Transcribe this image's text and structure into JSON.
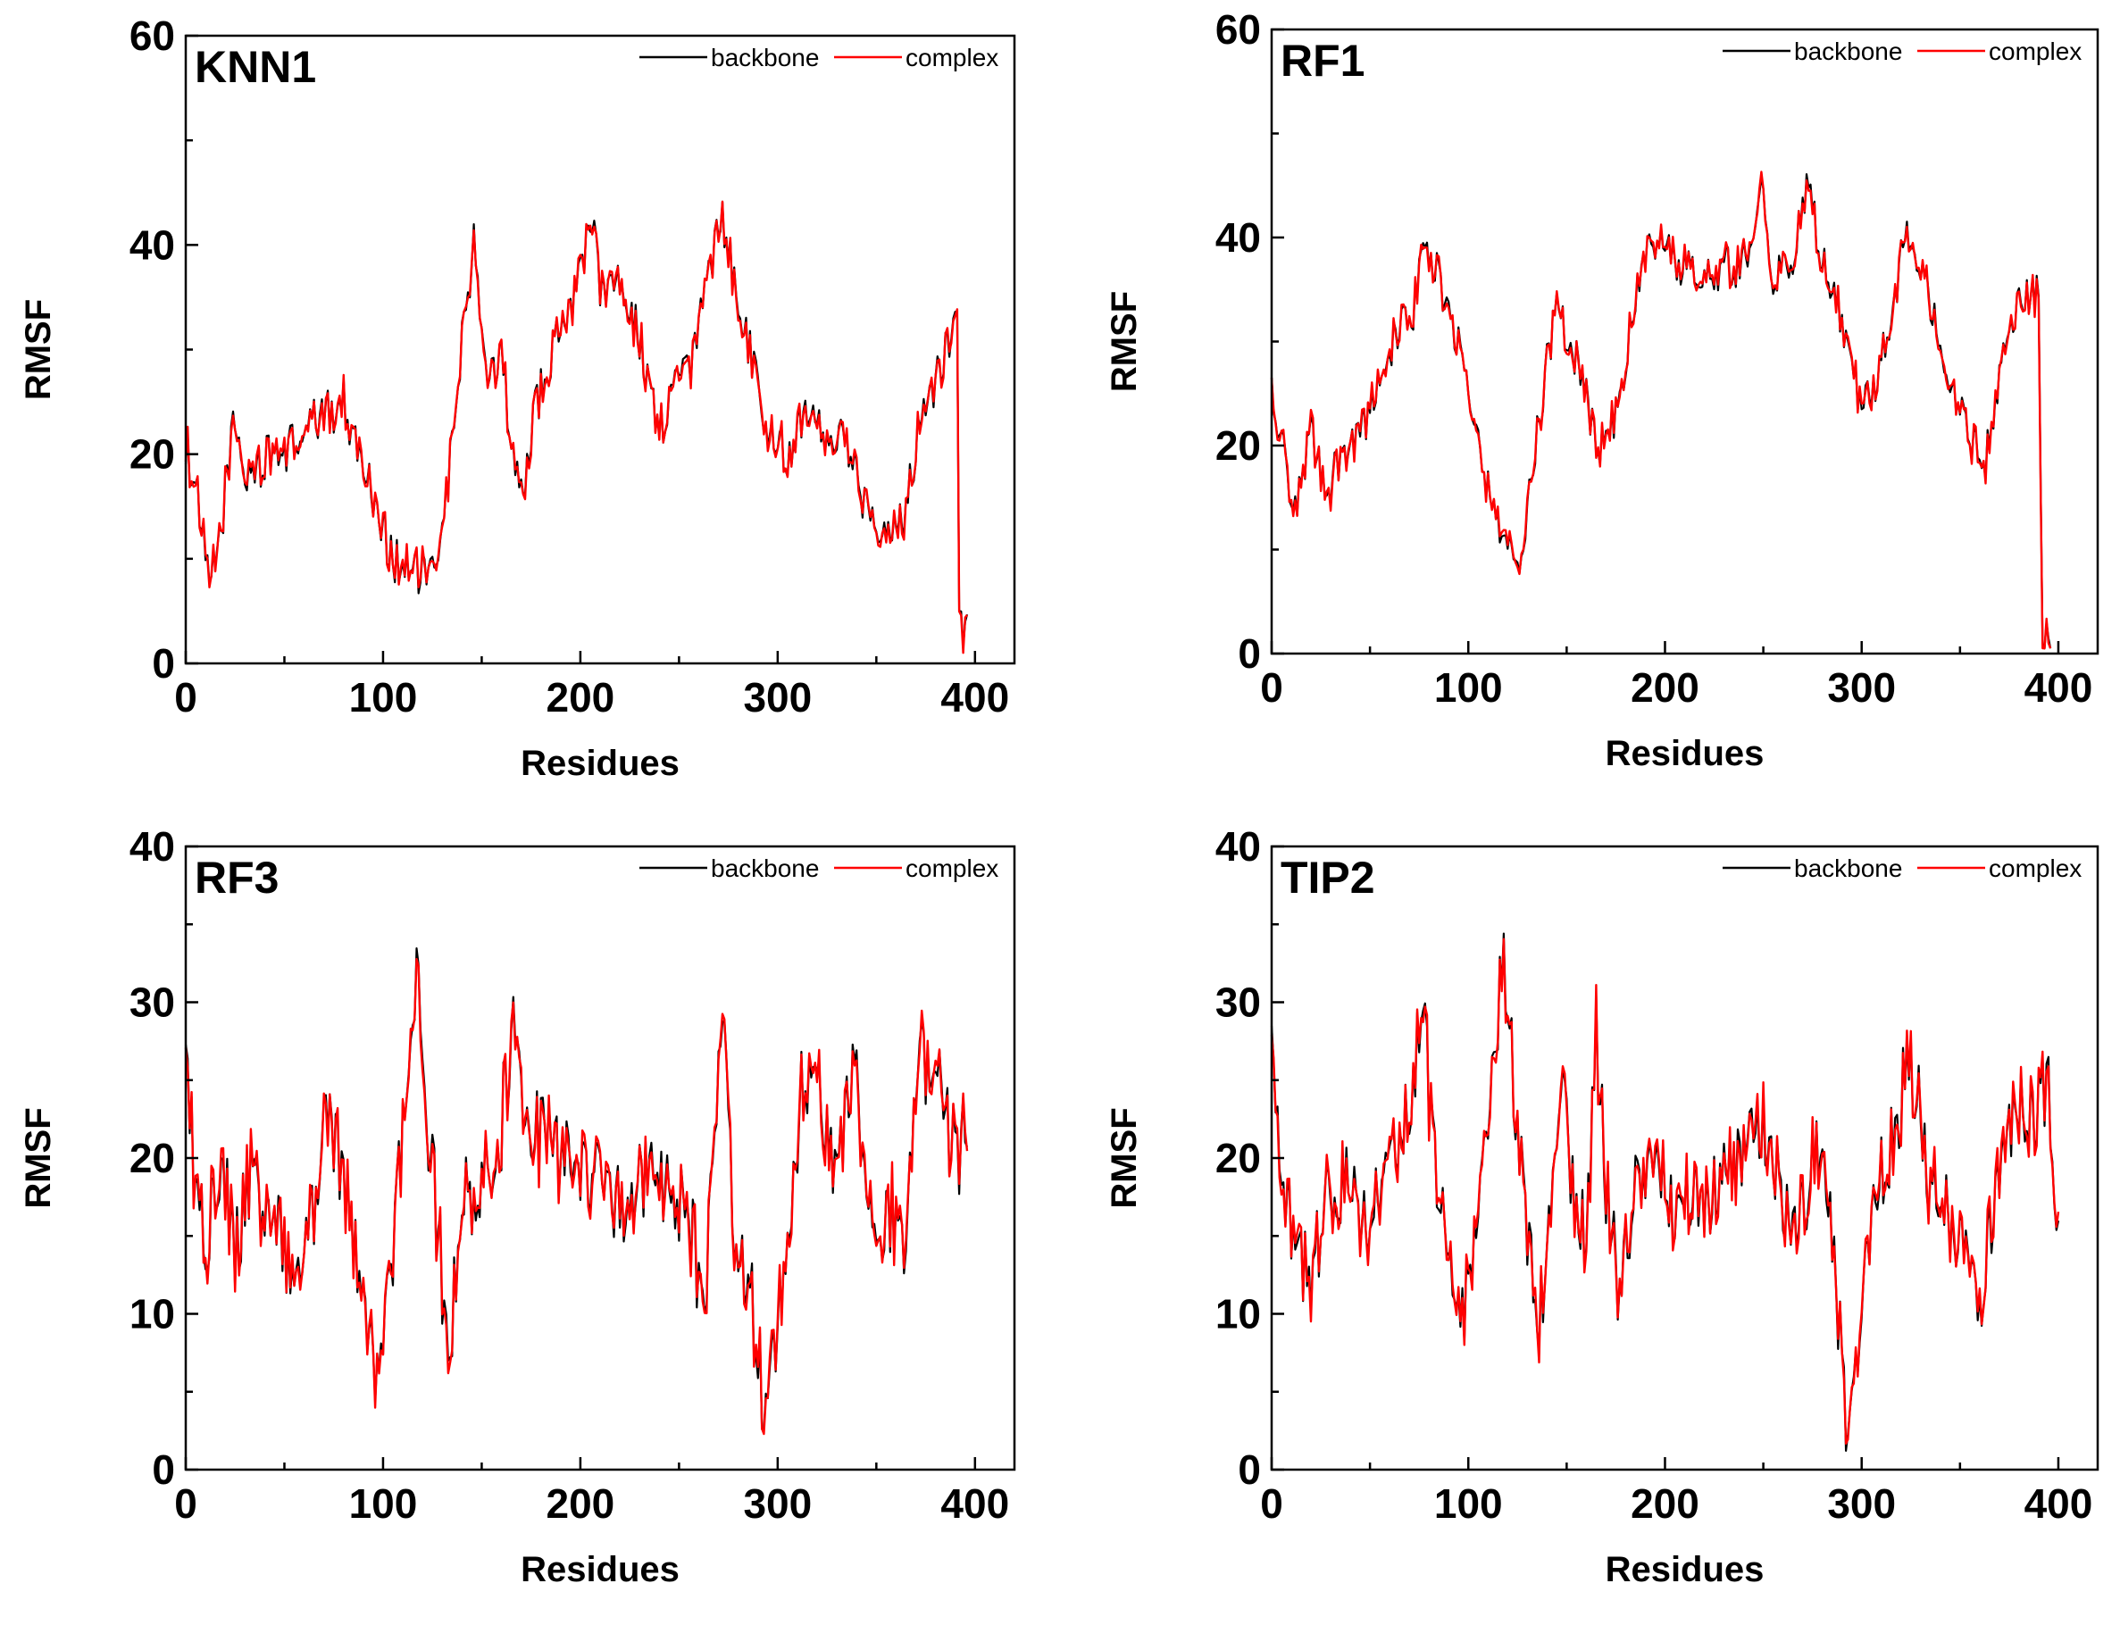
{
  "figure": {
    "description_free": true
  },
  "legend": {
    "series": [
      {
        "name": "backbone",
        "color": "#000000"
      },
      {
        "name": "complex",
        "color": "#ff0000"
      }
    ]
  },
  "chart_data": [
    {
      "type": "line",
      "panel_label": "KNN1",
      "xlabel": "Residues",
      "ylabel": "RMSF",
      "xlim": [
        0,
        420
      ],
      "ylim": [
        0,
        60
      ],
      "xticks": [
        0,
        100,
        200,
        300,
        400
      ],
      "yticks": [
        0,
        20,
        40,
        60
      ],
      "n": 396,
      "noise": 2.3,
      "series_gap": 0.6,
      "keypoints": [
        [
          0,
          21
        ],
        [
          5,
          17
        ],
        [
          12,
          7
        ],
        [
          18,
          13
        ],
        [
          24,
          23
        ],
        [
          30,
          18
        ],
        [
          45,
          20
        ],
        [
          55,
          21
        ],
        [
          65,
          23
        ],
        [
          80,
          25
        ],
        [
          95,
          16
        ],
        [
          105,
          10
        ],
        [
          115,
          9
        ],
        [
          125,
          8
        ],
        [
          133,
          17
        ],
        [
          140,
          31
        ],
        [
          146,
          40
        ],
        [
          150,
          30
        ],
        [
          155,
          27
        ],
        [
          160,
          31
        ],
        [
          165,
          20
        ],
        [
          170,
          16
        ],
        [
          178,
          25
        ],
        [
          190,
          32
        ],
        [
          200,
          37
        ],
        [
          205,
          43
        ],
        [
          210,
          36
        ],
        [
          220,
          37
        ],
        [
          230,
          31
        ],
        [
          240,
          22
        ],
        [
          248,
          27
        ],
        [
          255,
          28
        ],
        [
          262,
          34
        ],
        [
          272,
          43
        ],
        [
          280,
          35
        ],
        [
          290,
          27
        ],
        [
          295,
          22
        ],
        [
          305,
          20
        ],
        [
          315,
          25
        ],
        [
          325,
          22
        ],
        [
          335,
          21
        ],
        [
          345,
          15
        ],
        [
          355,
          13
        ],
        [
          365,
          14
        ],
        [
          372,
          24
        ],
        [
          380,
          27
        ],
        [
          388,
          32
        ],
        [
          391,
          35
        ],
        [
          392,
          3
        ],
        [
          396,
          4
        ]
      ],
      "series": [
        {
          "name": "backbone",
          "color": "#000000"
        },
        {
          "name": "complex",
          "color": "#ff0000"
        }
      ]
    },
    {
      "type": "line",
      "panel_label": "RF1",
      "xlabel": "Residues",
      "ylabel": "RMSF",
      "xlim": [
        0,
        420
      ],
      "ylim": [
        0,
        60
      ],
      "xticks": [
        0,
        100,
        200,
        300,
        400
      ],
      "yticks": [
        0,
        20,
        40,
        60
      ],
      "n": 396,
      "noise": 2.1,
      "series_gap": 0.6,
      "keypoints": [
        [
          0,
          26
        ],
        [
          5,
          20
        ],
        [
          12,
          14
        ],
        [
          20,
          21
        ],
        [
          28,
          15
        ],
        [
          35,
          19
        ],
        [
          45,
          21
        ],
        [
          55,
          26
        ],
        [
          65,
          32
        ],
        [
          72,
          33
        ],
        [
          78,
          40
        ],
        [
          85,
          36
        ],
        [
          95,
          30
        ],
        [
          103,
          23
        ],
        [
          108,
          17
        ],
        [
          115,
          13
        ],
        [
          122,
          9
        ],
        [
          127,
          10
        ],
        [
          132,
          17
        ],
        [
          140,
          28
        ],
        [
          145,
          34
        ],
        [
          150,
          30
        ],
        [
          158,
          27
        ],
        [
          165,
          20
        ],
        [
          172,
          21
        ],
        [
          180,
          28
        ],
        [
          190,
          39
        ],
        [
          200,
          40
        ],
        [
          205,
          37
        ],
        [
          215,
          37
        ],
        [
          225,
          37
        ],
        [
          235,
          37
        ],
        [
          245,
          40
        ],
        [
          250,
          45
        ],
        [
          255,
          36
        ],
        [
          265,
          38
        ],
        [
          272,
          45
        ],
        [
          280,
          38
        ],
        [
          290,
          32
        ],
        [
          298,
          25
        ],
        [
          305,
          24
        ],
        [
          315,
          32
        ],
        [
          322,
          40
        ],
        [
          330,
          37
        ],
        [
          340,
          30
        ],
        [
          348,
          24
        ],
        [
          355,
          21
        ],
        [
          362,
          17
        ],
        [
          370,
          27
        ],
        [
          378,
          33
        ],
        [
          390,
          35
        ],
        [
          392,
          2
        ],
        [
          398,
          2
        ]
      ],
      "series": [
        {
          "name": "backbone",
          "color": "#000000"
        },
        {
          "name": "complex",
          "color": "#ff0000"
        }
      ]
    },
    {
      "type": "line",
      "panel_label": "RF3",
      "xlabel": "Residues",
      "ylabel": "RMSF",
      "xlim": [
        0,
        420
      ],
      "ylim": [
        0,
        40
      ],
      "xticks": [
        0,
        100,
        200,
        300,
        400
      ],
      "yticks": [
        0,
        10,
        20,
        30,
        40
      ],
      "n": 396,
      "noise": 3.0,
      "series_gap": 0.8,
      "keypoints": [
        [
          0,
          26
        ],
        [
          6,
          17
        ],
        [
          12,
          15
        ],
        [
          18,
          20
        ],
        [
          25,
          13
        ],
        [
          32,
          19
        ],
        [
          40,
          16
        ],
        [
          50,
          14
        ],
        [
          58,
          12
        ],
        [
          65,
          17
        ],
        [
          72,
          24
        ],
        [
          78,
          20
        ],
        [
          85,
          15
        ],
        [
          92,
          10
        ],
        [
          98,
          6
        ],
        [
          104,
          12
        ],
        [
          110,
          22
        ],
        [
          117,
          31
        ],
        [
          123,
          22
        ],
        [
          130,
          12
        ],
        [
          134,
          8
        ],
        [
          140,
          17
        ],
        [
          150,
          18
        ],
        [
          160,
          22
        ],
        [
          166,
          29
        ],
        [
          172,
          20
        ],
        [
          180,
          22
        ],
        [
          190,
          20
        ],
        [
          200,
          20
        ],
        [
          210,
          18
        ],
        [
          220,
          17
        ],
        [
          230,
          18
        ],
        [
          240,
          19
        ],
        [
          250,
          17
        ],
        [
          258,
          14
        ],
        [
          263,
          10
        ],
        [
          268,
          20
        ],
        [
          272,
          28
        ],
        [
          278,
          16
        ],
        [
          285,
          13
        ],
        [
          292,
          5
        ],
        [
          295,
          4
        ],
        [
          300,
          9
        ],
        [
          305,
          16
        ],
        [
          312,
          24
        ],
        [
          320,
          24
        ],
        [
          330,
          19
        ],
        [
          338,
          26
        ],
        [
          345,
          20
        ],
        [
          352,
          15
        ],
        [
          360,
          17
        ],
        [
          365,
          14
        ],
        [
          372,
          26
        ],
        [
          380,
          25
        ],
        [
          390,
          20
        ],
        [
          396,
          22
        ]
      ],
      "series": [
        {
          "name": "backbone",
          "color": "#000000"
        },
        {
          "name": "complex",
          "color": "#ff0000"
        }
      ]
    },
    {
      "type": "line",
      "panel_label": "TIP2",
      "xlabel": "Residues",
      "ylabel": "RMSF",
      "xlim": [
        0,
        420
      ],
      "ylim": [
        0,
        40
      ],
      "xticks": [
        0,
        100,
        200,
        300,
        400
      ],
      "yticks": [
        0,
        10,
        20,
        30,
        40
      ],
      "n": 400,
      "noise": 2.8,
      "series_gap": 0.8,
      "keypoints": [
        [
          0,
          26
        ],
        [
          6,
          18
        ],
        [
          12,
          15
        ],
        [
          20,
          12
        ],
        [
          28,
          17
        ],
        [
          38,
          18
        ],
        [
          48,
          16
        ],
        [
          58,
          19
        ],
        [
          65,
          21
        ],
        [
          72,
          25
        ],
        [
          77,
          29
        ],
        [
          83,
          20
        ],
        [
          90,
          14
        ],
        [
          96,
          8
        ],
        [
          102,
          14
        ],
        [
          110,
          24
        ],
        [
          118,
          33
        ],
        [
          125,
          22
        ],
        [
          132,
          13
        ],
        [
          135,
          8
        ],
        [
          140,
          15
        ],
        [
          148,
          24
        ],
        [
          155,
          16
        ],
        [
          160,
          15
        ],
        [
          165,
          29
        ],
        [
          170,
          18
        ],
        [
          176,
          12
        ],
        [
          185,
          18
        ],
        [
          195,
          19
        ],
        [
          205,
          17
        ],
        [
          215,
          17
        ],
        [
          225,
          18
        ],
        [
          235,
          19
        ],
        [
          245,
          21
        ],
        [
          250,
          22
        ],
        [
          258,
          18
        ],
        [
          265,
          14
        ],
        [
          275,
          20
        ],
        [
          282,
          20
        ],
        [
          288,
          10
        ],
        [
          292,
          4
        ],
        [
          296,
          6
        ],
        [
          302,
          12
        ],
        [
          308,
          18
        ],
        [
          318,
          22
        ],
        [
          322,
          26
        ],
        [
          328,
          24
        ],
        [
          335,
          18
        ],
        [
          345,
          16
        ],
        [
          352,
          14
        ],
        [
          358,
          11
        ],
        [
          362,
          11
        ],
        [
          370,
          20
        ],
        [
          380,
          23
        ],
        [
          390,
          23
        ],
        [
          395,
          25
        ],
        [
          400,
          14
        ]
      ],
      "series": [
        {
          "name": "backbone",
          "color": "#000000"
        },
        {
          "name": "complex",
          "color": "#ff0000"
        }
      ]
    }
  ]
}
